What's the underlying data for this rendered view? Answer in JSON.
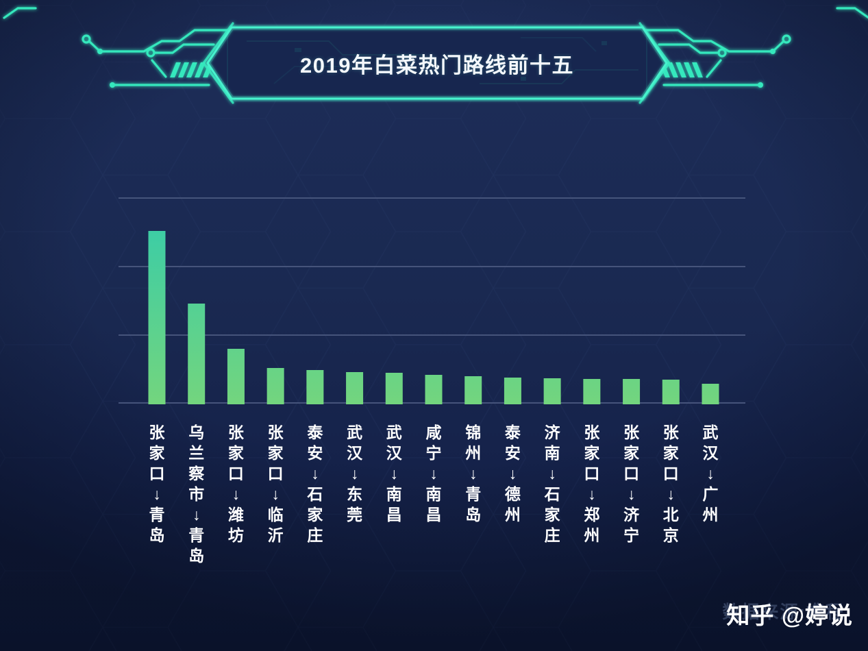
{
  "page": {
    "title_banner": "2019年白菜热门路线前十五"
  },
  "watermark": {
    "brand": "知乎 @婷说",
    "source_text": "数据来源:携程"
  },
  "colors": {
    "background_top": "#1d2d59",
    "background_bottom": "#111c3d",
    "bar_gradient_top": "#3ecda4",
    "bar_gradient_bottom": "#73d57e",
    "gridline": "#46547b",
    "banner_stroke": "#46f2cd",
    "circuit_teal": "#35e8bd",
    "label_text": "#ffffff"
  },
  "chart_data": {
    "type": "bar",
    "title": "2019年白菜热门路线前十五",
    "xlabel": "",
    "ylabel": "",
    "ylim": [
      0,
      300
    ],
    "gridline_step": 100,
    "grid": true,
    "legend": false,
    "arrow_glyph": "↓",
    "categories": [
      "张家口↓青岛",
      "乌兰察市↓青岛",
      "张家口↓潍坊",
      "张家口↓临沂",
      "泰安↓石家庄",
      "武汉↓东莞",
      "武汉↓南昌",
      "咸宁↓南昌",
      "锦州↓青岛",
      "泰安↓德州",
      "济南↓石家庄",
      "张家口↓郑州",
      "张家口↓济宁",
      "张家口↓北京",
      "武汉↓广州"
    ],
    "routes": [
      {
        "from": "张家口",
        "to": "青岛"
      },
      {
        "from": "乌兰察市",
        "to": "青岛"
      },
      {
        "from": "张家口",
        "to": "潍坊"
      },
      {
        "from": "张家口",
        "to": "临沂"
      },
      {
        "from": "泰安",
        "to": "石家庄"
      },
      {
        "from": "武汉",
        "to": "东莞"
      },
      {
        "from": "武汉",
        "to": "南昌"
      },
      {
        "from": "咸宁",
        "to": "南昌"
      },
      {
        "from": "锦州",
        "to": "青岛"
      },
      {
        "from": "泰安",
        "to": "德州"
      },
      {
        "from": "济南",
        "to": "石家庄"
      },
      {
        "from": "张家口",
        "to": "郑州"
      },
      {
        "from": "张家口",
        "to": "济宁"
      },
      {
        "from": "张家口",
        "to": "北京"
      },
      {
        "from": "武汉",
        "to": "广州"
      }
    ],
    "values": [
      252,
      146,
      80,
      52,
      49,
      46,
      45,
      42,
      40,
      38,
      37,
      36,
      36,
      35,
      29
    ]
  }
}
